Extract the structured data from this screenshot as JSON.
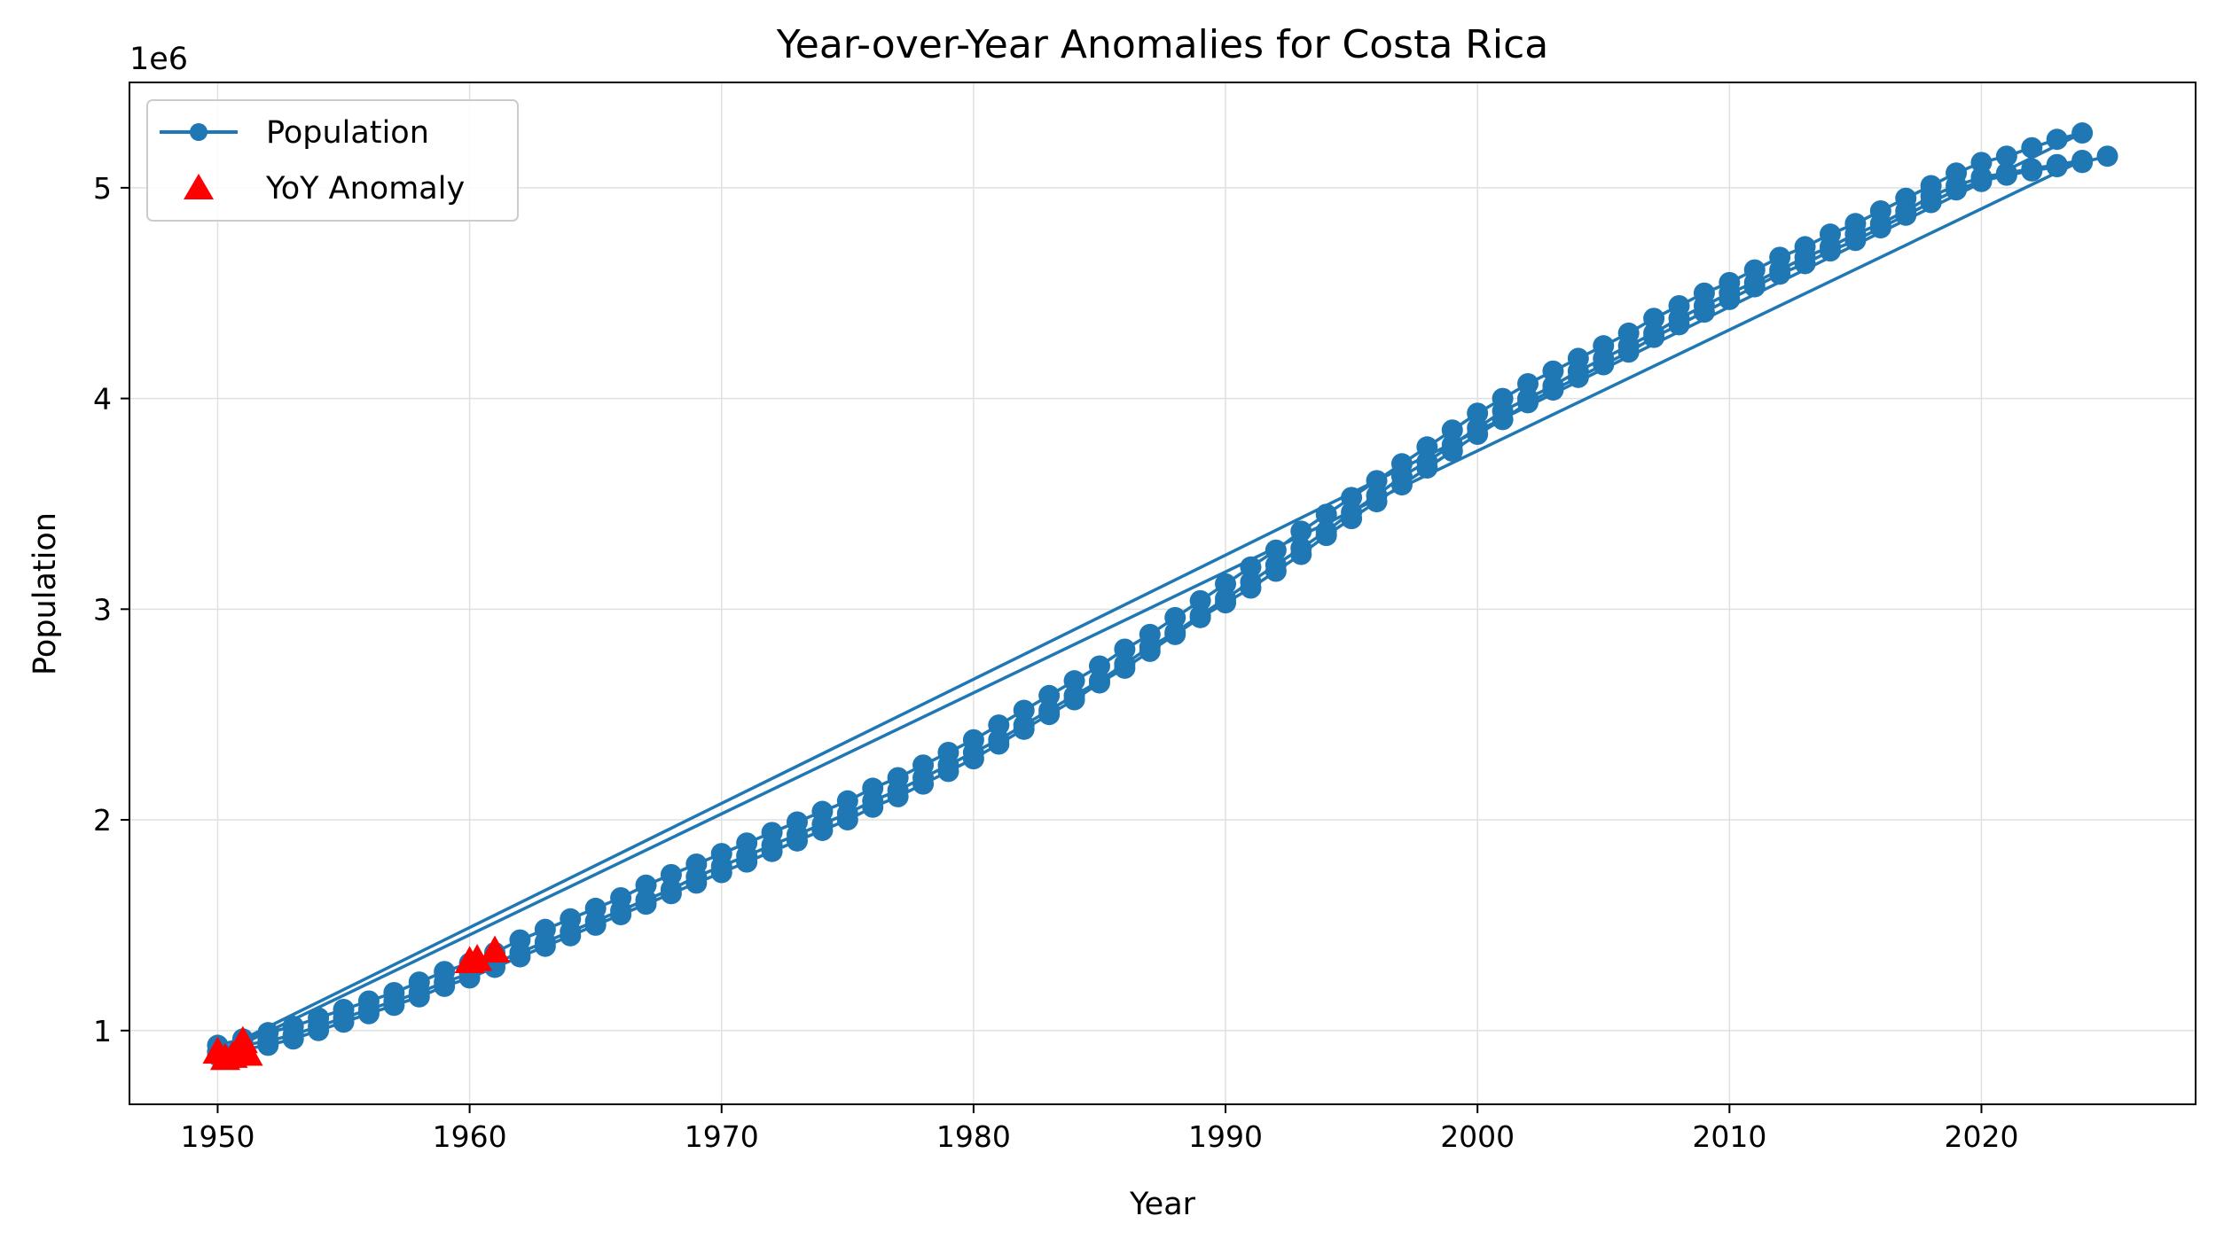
{
  "chart_data": {
    "type": "line",
    "title": "Year-over-Year Anomalies for Costa Rica",
    "xlabel": "Year",
    "ylabel": "Population",
    "y_offset_label": "1e6",
    "xlim": [
      1946.5,
      2028.5
    ],
    "ylim": [
      650000,
      5500000
    ],
    "x_ticks": [
      1950,
      1960,
      1970,
      1980,
      1990,
      2000,
      2010,
      2020
    ],
    "y_ticks": [
      1000000,
      2000000,
      3000000,
      4000000,
      5000000
    ],
    "y_tick_labels": [
      "1",
      "2",
      "3",
      "4",
      "5"
    ],
    "grid": true,
    "legend_position": "upper left",
    "series": [
      {
        "name": "Population",
        "color": "#1f77b4",
        "marker": "circle",
        "segments": [
          {
            "x": [
              1950,
              1951,
              1952,
              1953,
              1954,
              1955,
              1956,
              1957,
              1958,
              1959,
              1960,
              1961,
              1962,
              1963,
              1964,
              1965,
              1966,
              1967,
              1968,
              1969,
              1970,
              1971,
              1972,
              1973,
              1974,
              1975,
              1976,
              1977,
              1978,
              1979,
              1980,
              1981,
              1982,
              1983,
              1984,
              1985,
              1986,
              1987,
              1988,
              1989,
              1990,
              1991,
              1992,
              1993,
              1994,
              1995,
              1996,
              1997,
              1998,
              1999,
              2000,
              2001,
              2002,
              2003,
              2004,
              2005,
              2006,
              2007,
              2008,
              2009,
              2010,
              2011,
              2012,
              2013,
              2014,
              2015,
              2016,
              2017,
              2018,
              2019,
              2020,
              2021,
              2022,
              2023,
              2024
            ],
            "y": [
              930000,
              960000,
              990000,
              1020000,
              1060000,
              1100000,
              1140000,
              1180000,
              1230000,
              1280000,
              1320000,
              1370000,
              1430000,
              1480000,
              1530000,
              1580000,
              1630000,
              1690000,
              1740000,
              1790000,
              1840000,
              1890000,
              1940000,
              1990000,
              2040000,
              2090000,
              2150000,
              2200000,
              2260000,
              2320000,
              2380000,
              2450000,
              2520000,
              2590000,
              2660000,
              2730000,
              2810000,
              2880000,
              2960000,
              3040000,
              3120000,
              3200000,
              3280000,
              3370000,
              3450000,
              3530000,
              3610000,
              3690000,
              3770000,
              3850000,
              3930000,
              4000000,
              4070000,
              4130000,
              4190000,
              4250000,
              4310000,
              4380000,
              4440000,
              4500000,
              4550000,
              4610000,
              4670000,
              4720000,
              4780000,
              4830000,
              4890000,
              4950000,
              5010000,
              5070000,
              5120000,
              5150000,
              5190000,
              5230000,
              5260000
            ]
          },
          {
            "x": [
              1950,
              1951,
              1952,
              1953,
              1954,
              1955,
              1956,
              1957,
              1958,
              1959,
              1960,
              1961,
              1962,
              1963,
              1964,
              1965,
              1966,
              1967,
              1968,
              1969,
              1970,
              1971,
              1972,
              1973,
              1974,
              1975,
              1976,
              1977,
              1978,
              1979,
              1980,
              1981,
              1982,
              1983,
              1984,
              1985,
              1986,
              1987,
              1988,
              1989,
              1990,
              1991,
              1992,
              1993,
              1994,
              1995,
              1996,
              1997,
              1998,
              1999,
              2000,
              2001,
              2002,
              2003,
              2004,
              2005,
              2006,
              2007,
              2008,
              2009,
              2010,
              2011,
              2012,
              2013,
              2014,
              2015,
              2016,
              2017,
              2018,
              2019,
              2020,
              2021,
              2022,
              2023,
              2024
            ],
            "y": [
              900000,
              930000,
              950000,
              980000,
              1020000,
              1060000,
              1100000,
              1140000,
              1180000,
              1230000,
              1270000,
              1320000,
              1370000,
              1420000,
              1470000,
              1520000,
              1570000,
              1620000,
              1670000,
              1730000,
              1780000,
              1830000,
              1880000,
              1930000,
              1980000,
              2030000,
              2090000,
              2140000,
              2200000,
              2260000,
              2320000,
              2380000,
              2450000,
              2520000,
              2590000,
              2660000,
              2740000,
              2820000,
              2890000,
              2970000,
              3050000,
              3130000,
              3210000,
              3290000,
              3370000,
              3460000,
              3540000,
              3630000,
              3700000,
              3780000,
              3860000,
              3940000,
              4000000,
              4060000,
              4130000,
              4190000,
              4250000,
              4310000,
              4380000,
              4440000,
              4500000,
              4550000,
              4610000,
              4670000,
              4720000,
              4780000,
              4830000,
              4890000,
              4960000,
              5010000,
              5050000,
              5070000,
              5090000,
              5110000,
              5130000
            ]
          },
          {
            "x": [
              1950,
              1951,
              1952,
              1953,
              1954,
              1955,
              1956,
              1957,
              1958,
              1959,
              1960,
              1961,
              1962,
              1963,
              1964,
              1965,
              1966,
              1967,
              1968,
              1969,
              1970,
              1971,
              1972,
              1973,
              1974,
              1975,
              1976,
              1977,
              1978,
              1979,
              1980,
              1981,
              1982,
              1983,
              1984,
              1985,
              1986,
              1987,
              1988,
              1989,
              1990,
              1991,
              1992,
              1993,
              1994,
              1995,
              1996,
              1997,
              1998,
              1999,
              2000,
              2001,
              2002,
              2003,
              2004,
              2005,
              2006,
              2007,
              2008,
              2009,
              2010,
              2011,
              2012,
              2013,
              2014,
              2015,
              2016,
              2017,
              2018,
              2019,
              2020,
              2021,
              2022,
              2023,
              2024,
              2025
            ],
            "y": [
              880000,
              910000,
              930000,
              960000,
              1000000,
              1040000,
              1080000,
              1120000,
              1160000,
              1210000,
              1250000,
              1300000,
              1350000,
              1400000,
              1450000,
              1500000,
              1550000,
              1600000,
              1650000,
              1700000,
              1750000,
              1800000,
              1850000,
              1900000,
              1950000,
              2000000,
              2060000,
              2110000,
              2170000,
              2230000,
              2290000,
              2360000,
              2430000,
              2500000,
              2570000,
              2650000,
              2720000,
              2800000,
              2880000,
              2960000,
              3030000,
              3100000,
              3180000,
              3260000,
              3350000,
              3430000,
              3510000,
              3590000,
              3670000,
              3750000,
              3830000,
              3900000,
              3980000,
              4040000,
              4100000,
              4160000,
              4220000,
              4290000,
              4350000,
              4410000,
              4470000,
              4530000,
              4590000,
              4640000,
              4700000,
              4750000,
              4810000,
              4870000,
              4930000,
              4990000,
              5030000,
              5060000,
              5080000,
              5100000,
              5120000,
              5150000
            ]
          }
        ]
      },
      {
        "name": "YoY Anomaly",
        "color": "#ff0000",
        "marker": "triangle",
        "x": [
          1950,
          1950.3,
          1950.6,
          1951,
          1951.2,
          1960,
          1960.3,
          1961
        ],
        "y": [
          900000,
          870000,
          880000,
          950000,
          890000,
          1330000,
          1340000,
          1380000
        ]
      }
    ]
  }
}
